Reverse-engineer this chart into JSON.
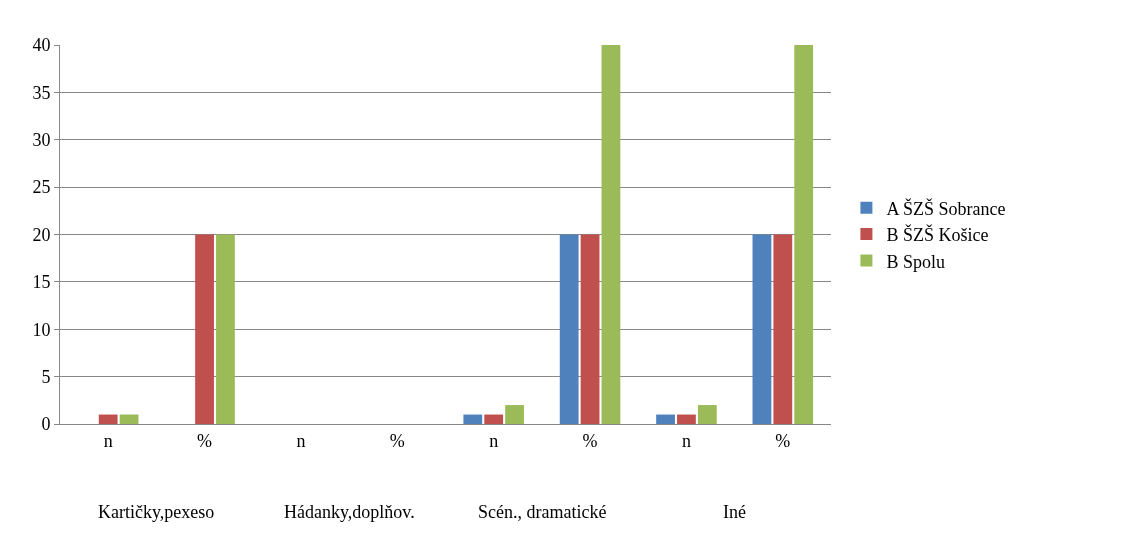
{
  "chart_data": {
    "type": "bar",
    "categories": [
      "n",
      "%",
      "n",
      "%",
      "n",
      "%",
      "n",
      "%"
    ],
    "annotations": [
      "Kartičky,pexeso",
      "Hádanky,doplňov.",
      "Scén., dramatické",
      "Iné"
    ],
    "series": [
      {
        "name": "A ŠZŠ Sobrance",
        "color": "#4f81bd",
        "values": [
          0,
          0,
          0,
          0,
          1,
          20,
          1,
          20
        ]
      },
      {
        "name": "B ŠZŠ Košice",
        "color": "#c0504d",
        "values": [
          1,
          20,
          0,
          0,
          1,
          20,
          1,
          20
        ]
      },
      {
        "name": "B Spolu",
        "color": "#9bbb59",
        "values": [
          1,
          20,
          0,
          0,
          2,
          40,
          2,
          40
        ]
      }
    ],
    "ylim": [
      0,
      40
    ],
    "yticks": [
      0,
      5,
      10,
      15,
      20,
      25,
      30,
      35,
      40
    ],
    "grid": "y",
    "legend": "right"
  }
}
